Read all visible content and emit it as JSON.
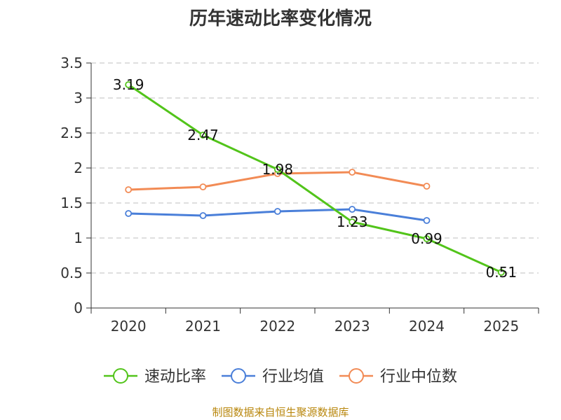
{
  "chart_data": {
    "type": "line",
    "title": "历年速动比率变化情况",
    "categories": [
      "2020",
      "2021",
      "2022",
      "2023",
      "2024",
      "2025"
    ],
    "ylim": [
      0,
      3.5
    ],
    "yticks": [
      "0",
      "0.5",
      "1",
      "1.5",
      "2",
      "2.5",
      "3",
      "3.5"
    ],
    "grid": true,
    "legend_position": "bottom",
    "series": [
      {
        "name": "速动比率",
        "color": "#52c41a",
        "values": [
          3.19,
          2.47,
          1.98,
          1.23,
          0.99,
          0.51
        ],
        "labels": [
          "3.19",
          "2.47",
          "1.98",
          "1.23",
          "0.99",
          "0.51"
        ]
      },
      {
        "name": "行业均值",
        "color": "#4a7fd9",
        "values": [
          1.35,
          1.32,
          1.38,
          1.41,
          1.25,
          null
        ]
      },
      {
        "name": "行业中位数",
        "color": "#f28b55",
        "values": [
          1.69,
          1.73,
          1.92,
          1.94,
          1.74,
          null
        ]
      }
    ]
  },
  "source": "制图数据来自恒生聚源数据库"
}
